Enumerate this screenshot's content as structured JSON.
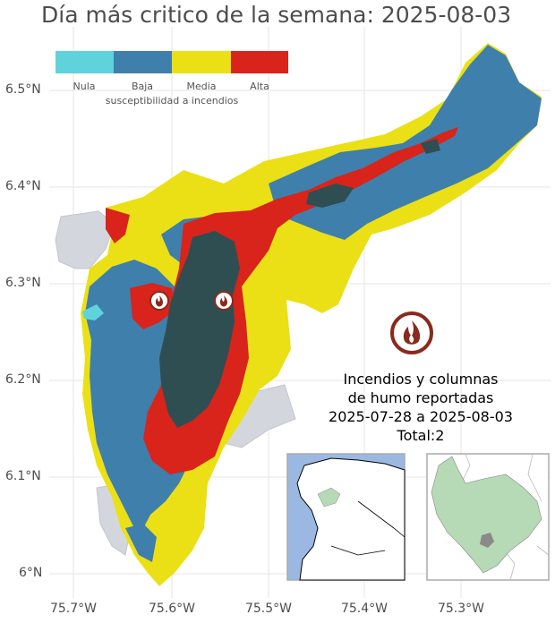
{
  "title": "Día más critico de la semana: 2025-08-03",
  "axes": {
    "y_ticks": [
      "6.5°N",
      "6.4°N",
      "6.3°N",
      "6.2°N",
      "6.1°N",
      "6°N"
    ],
    "x_ticks": [
      "75.7°W",
      "75.6°W",
      "75.5°W",
      "75.4°W",
      "75.3°W"
    ]
  },
  "legend": {
    "title": "susceptibilidad a incendios",
    "items": [
      {
        "label": "Nula",
        "color": "#5fd3dc"
      },
      {
        "label": "Baja",
        "color": "#3f7fab"
      },
      {
        "label": "Media",
        "color": "#ebe015"
      },
      {
        "label": "Alta",
        "color": "#d8241b"
      }
    ]
  },
  "fire_markers": [
    {
      "lon": -75.611,
      "lat": 6.283
    },
    {
      "lon": -75.544,
      "lat": 6.283
    }
  ],
  "info_box": {
    "line1": "Incendios y columnas",
    "line2": "de humo reportadas",
    "line3": "2025-07-28 a 2025-08-03",
    "line4": "Total:2"
  },
  "colors": {
    "grid": "#e5e5e5",
    "municipality_outside": "#d3d7dd",
    "urban": "#2e4e52",
    "inset_sea": "#9bb8e3",
    "inset_region": "#b6dab5",
    "fire_icon": "#8a2a1c"
  }
}
